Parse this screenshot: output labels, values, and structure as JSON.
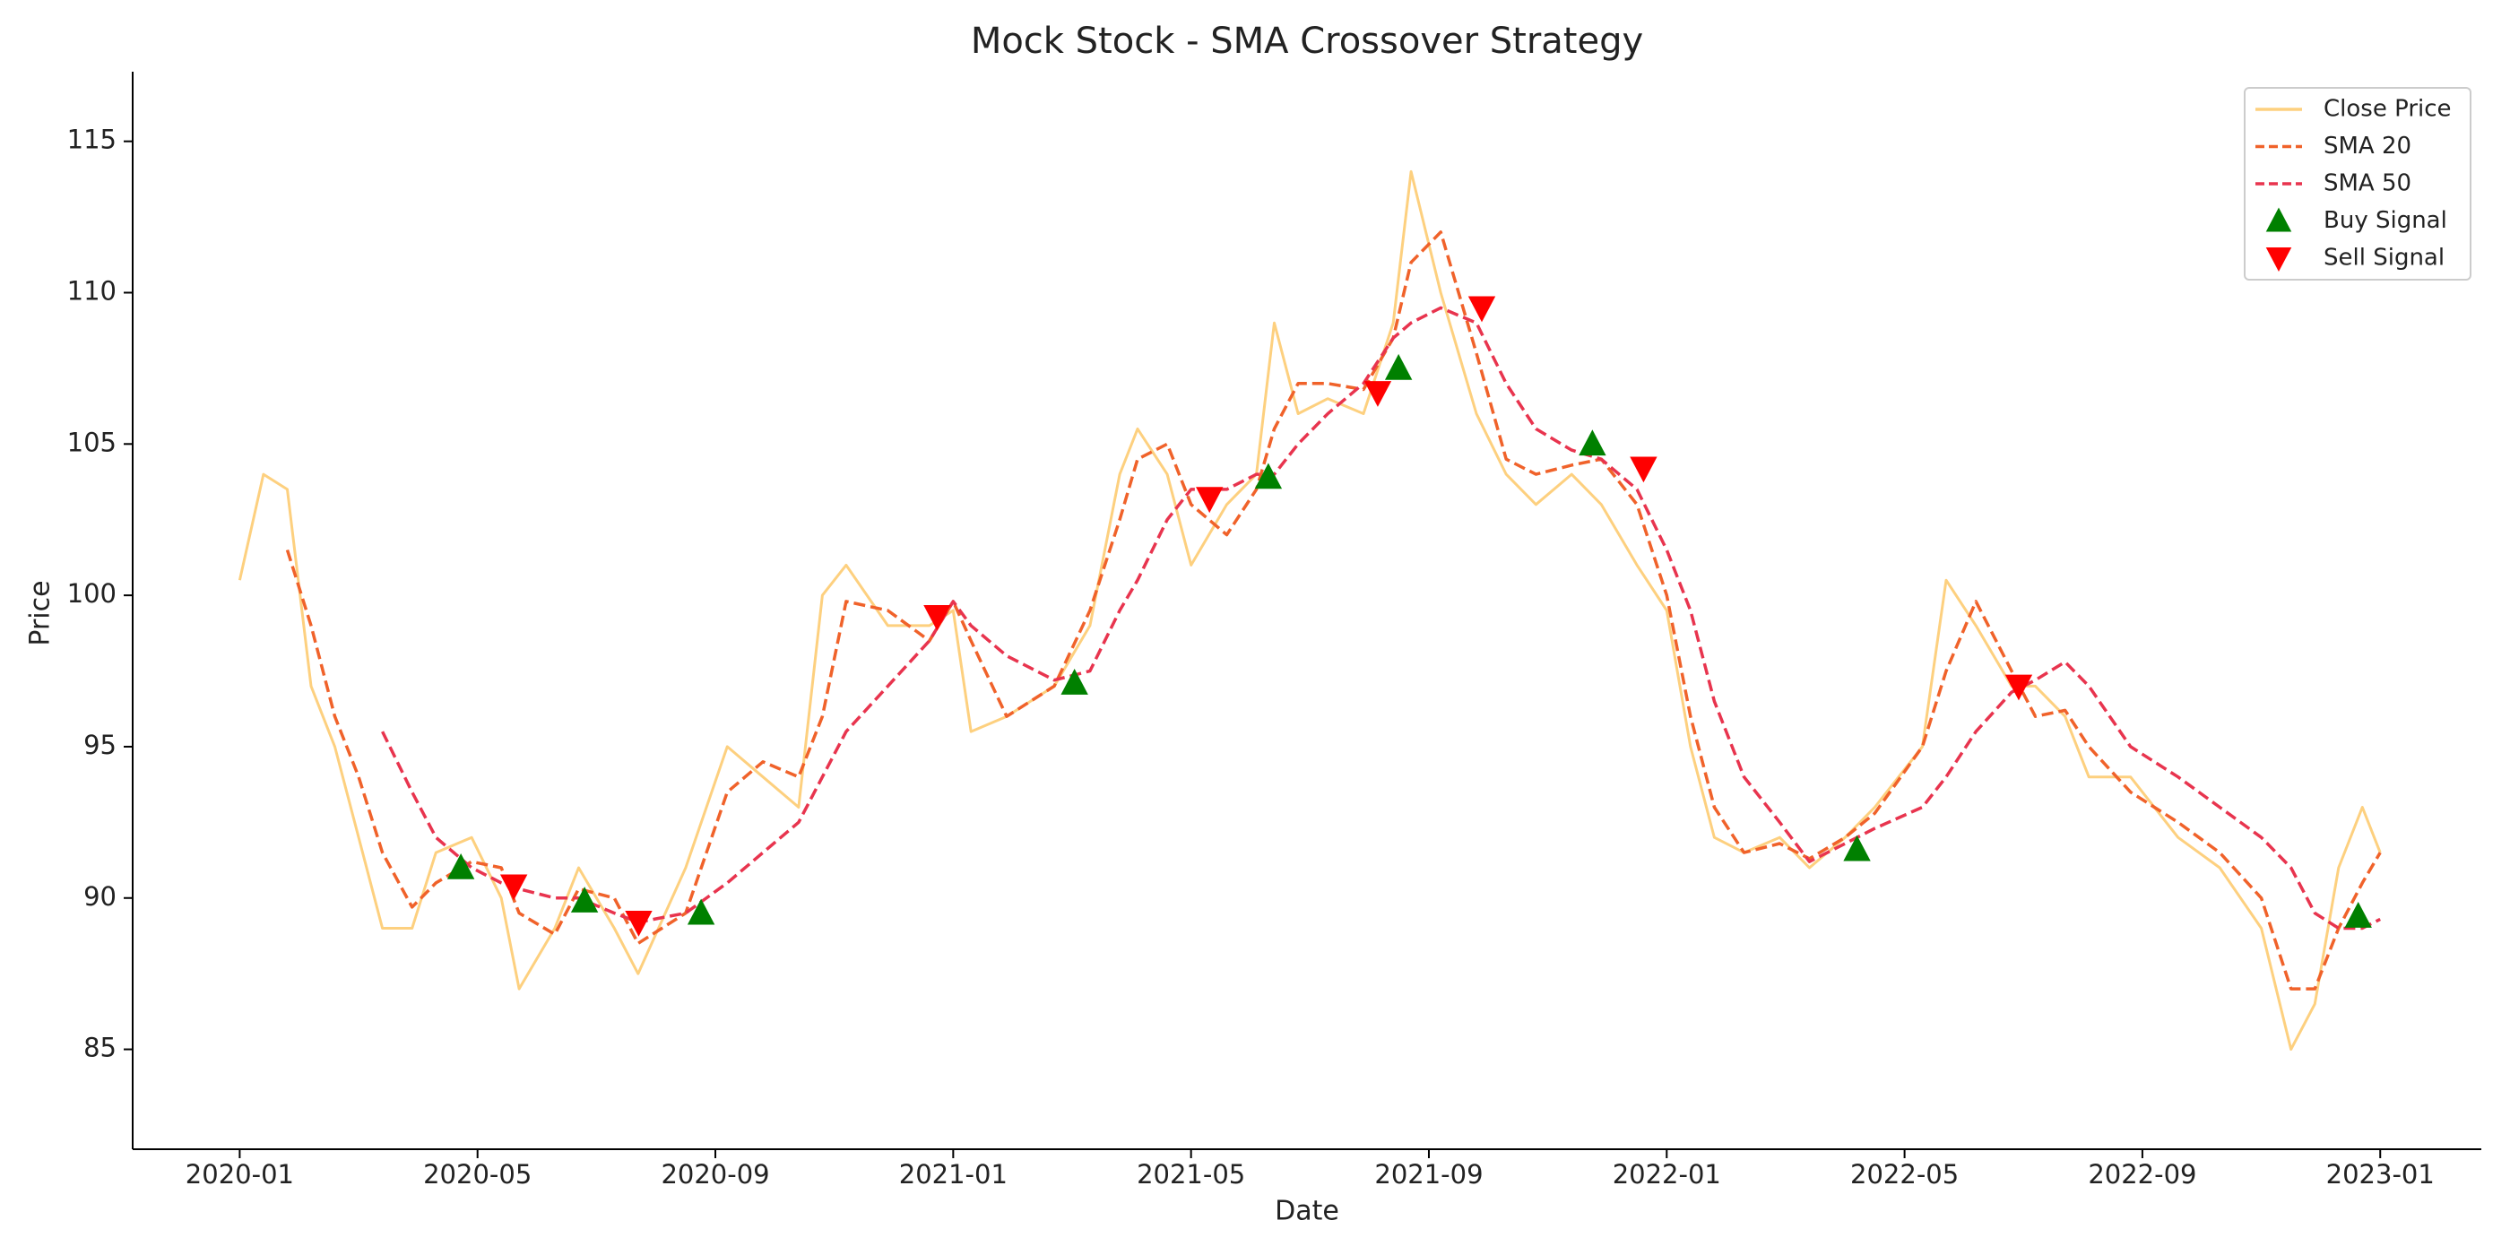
{
  "chart_data": {
    "type": "line",
    "title": "Mock Stock - SMA Crossover Strategy",
    "x_label": "Date",
    "y_label": "Price",
    "x": [
      0,
      0.4,
      0.8,
      1.2,
      1.6,
      2.0,
      2.4,
      2.9,
      3.3,
      3.9,
      4.4,
      4.7,
      5.3,
      5.7,
      6.3,
      6.7,
      7.5,
      8.2,
      8.8,
      9.4,
      9.8,
      10.2,
      10.9,
      11.6,
      12.0,
      12.3,
      12.9,
      13.7,
      14.3,
      14.8,
      15.1,
      15.6,
      16.0,
      16.6,
      17.1,
      17.4,
      17.8,
      18.3,
      18.9,
      19.4,
      19.7,
      20.2,
      20.8,
      21.3,
      21.8,
      22.4,
      22.9,
      23.5,
      24.0,
      24.4,
      24.8,
      25.3,
      25.9,
      26.4,
      27.0,
      27.5,
      28.3,
      28.7,
      29.2,
      29.8,
      30.2,
      30.7,
      31.1,
      31.8,
      32.6,
      33.3,
      34.0,
      34.5,
      34.9,
      35.3,
      35.7,
      36.0
    ],
    "series": [
      {
        "name": "Close Price",
        "color": "#fdd07f",
        "line_style": "solid",
        "values": [
          100.5,
          104,
          103.5,
          97,
          95,
          92,
          89,
          89,
          91.5,
          92,
          90,
          87,
          89,
          91,
          89,
          87.5,
          91,
          95,
          94,
          93,
          100,
          101,
          99,
          99,
          99.5,
          95.5,
          96,
          97,
          99,
          104,
          105.5,
          104,
          101,
          103,
          104,
          109,
          106,
          106.5,
          106,
          109,
          114,
          110,
          106,
          104,
          103,
          104,
          103,
          101,
          99.5,
          95,
          92,
          91.5,
          92,
          91,
          92,
          93,
          95,
          100.5,
          99,
          97,
          97,
          96,
          94,
          94,
          92,
          91,
          89,
          85,
          86.5,
          91,
          93,
          91.5
        ]
      },
      {
        "name": "SMA 20",
        "color": "#f0622a",
        "line_style": "dashed",
        "values": [
          null,
          null,
          101.5,
          99,
          96,
          94,
          91.5,
          89.7,
          90.5,
          91.2,
          91,
          89.5,
          88.8,
          90.3,
          90,
          88.5,
          89.5,
          93.5,
          94.5,
          94,
          96,
          99.8,
          99.5,
          98.5,
          99.8,
          98.5,
          96,
          97,
          99.5,
          102.5,
          104.5,
          105,
          103,
          102,
          103.5,
          105.5,
          107,
          107,
          106.8,
          108.5,
          111,
          112,
          108,
          104.5,
          104,
          104.3,
          104.5,
          103,
          100,
          96,
          93,
          91.5,
          91.8,
          91.3,
          92,
          92.8,
          95,
          97.5,
          99.8,
          97.5,
          96,
          96.2,
          95,
          93.5,
          92.5,
          91.5,
          90,
          87,
          87,
          89,
          90.5,
          91.5
        ]
      },
      {
        "name": "SMA 50",
        "color": "#e8344e",
        "line_style": "dashed",
        "values": [
          null,
          null,
          null,
          null,
          null,
          null,
          95.5,
          93.5,
          92,
          91,
          90.5,
          90.3,
          90,
          90,
          89.5,
          89.2,
          89.5,
          90.5,
          91.5,
          92.5,
          94,
          95.5,
          97,
          98.5,
          99.8,
          99,
          98,
          97.2,
          97.5,
          99.5,
          100.5,
          102.5,
          103.5,
          103.5,
          104,
          104,
          105,
          106,
          107,
          108.5,
          109,
          109.5,
          109,
          107,
          105.5,
          104.8,
          104.5,
          103.5,
          101.5,
          99.5,
          96.5,
          94,
          92.5,
          91.2,
          91.8,
          92.3,
          93,
          94,
          95.5,
          96.8,
          97.2,
          97.8,
          97,
          95,
          94,
          93,
          92,
          91,
          89.5,
          89,
          89,
          89.3
        ]
      },
      {
        "name": "Buy Signal",
        "color": "#008000",
        "marker": "triangle-up",
        "x": [
          3.72,
          5.8,
          7.76,
          14.04,
          17.3,
          19.49,
          22.75,
          27.2,
          35.63
        ],
        "values": [
          91.0,
          89.9,
          89.5,
          97.1,
          103.9,
          107.5,
          105.0,
          91.6,
          89.4
        ]
      },
      {
        "name": "Sell Signal",
        "color": "#ff0000",
        "marker": "triangle-down",
        "x": [
          4.61,
          6.71,
          11.73,
          16.31,
          19.14,
          20.89,
          23.61,
          29.92
        ],
        "values": [
          90.4,
          89.2,
          99.3,
          103.2,
          106.7,
          109.5,
          104.2,
          97.0
        ]
      }
    ],
    "xlim": [
      -1.8,
      37.7
    ],
    "ylim": [
      81.7,
      117.3
    ],
    "xticks": [
      {
        "value": 0,
        "label": "2020-01"
      },
      {
        "value": 4,
        "label": "2020-05"
      },
      {
        "value": 8,
        "label": "2020-09"
      },
      {
        "value": 12,
        "label": "2021-01"
      },
      {
        "value": 16,
        "label": "2021-05"
      },
      {
        "value": 20,
        "label": "2021-09"
      },
      {
        "value": 24,
        "label": "2022-01"
      },
      {
        "value": 28,
        "label": "2022-05"
      },
      {
        "value": 32,
        "label": "2022-09"
      },
      {
        "value": 36,
        "label": "2023-01"
      }
    ],
    "yticks": [
      85,
      90,
      95,
      100,
      105,
      110,
      115
    ],
    "grid": false,
    "legend_position": "upper right"
  }
}
